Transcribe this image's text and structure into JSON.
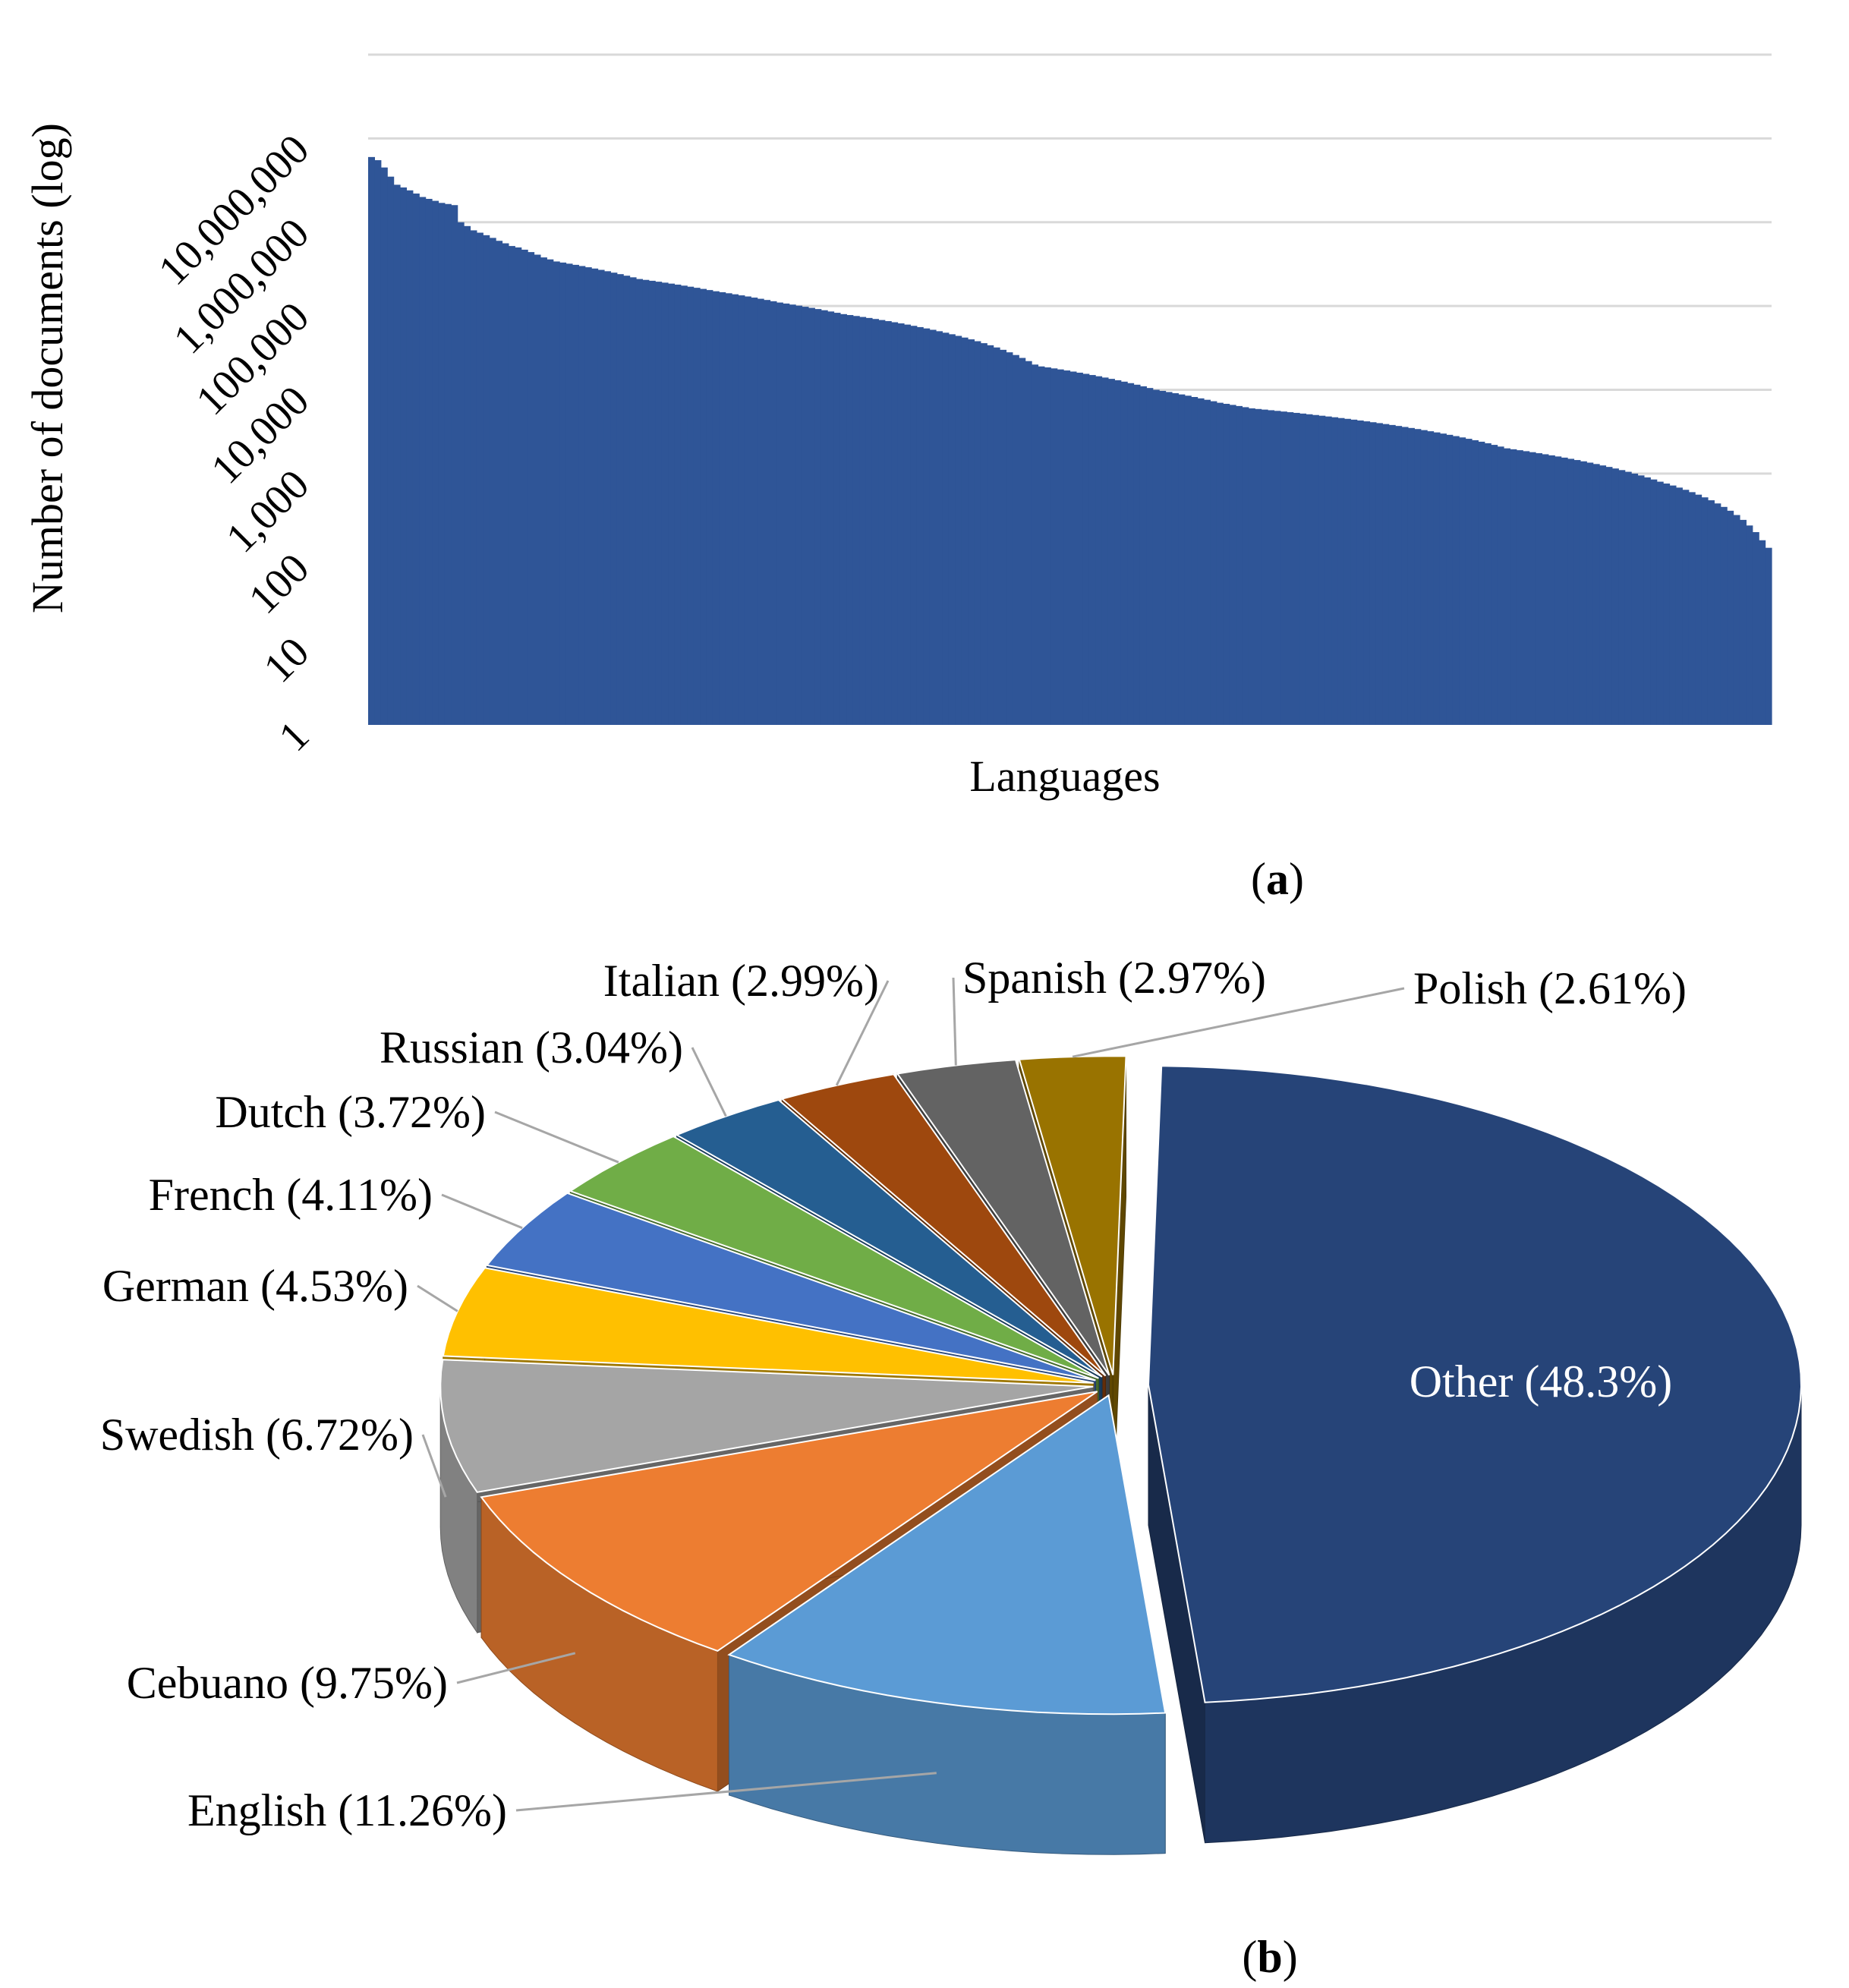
{
  "panel_a_label": "a",
  "panel_b_label": "b",
  "chart_data": [
    {
      "type": "bar",
      "panel": "a",
      "xlabel": "Languages",
      "ylabel": "Number of documents (log)",
      "yscale": "log",
      "ylim": [
        1,
        100000000
      ],
      "yticks": [
        "1",
        "10",
        "100",
        "1,000",
        "10,000",
        "100,000",
        "1,000,000",
        "10,000,000"
      ],
      "grid": true,
      "bar_color": "#2F5597",
      "values": [
        6000000,
        5500000,
        4500000,
        3500000,
        2800000,
        2600000,
        2400000,
        2200000,
        2000000,
        1900000,
        1800000,
        1700000,
        1650000,
        1600000,
        1000000,
        900000,
        800000,
        750000,
        700000,
        650000,
        600000,
        560000,
        520000,
        500000,
        470000,
        440000,
        410000,
        380000,
        360000,
        340000,
        330000,
        320000,
        310000,
        300000,
        290000,
        280000,
        270000,
        260000,
        250000,
        240000,
        230000,
        220000,
        210000,
        205000,
        200000,
        195000,
        190000,
        185000,
        180000,
        175000,
        170000,
        165000,
        160000,
        155000,
        150000,
        146000,
        142000,
        138000,
        134000,
        130000,
        126000,
        122000,
        118000,
        114000,
        110000,
        107000,
        104000,
        101000,
        98000,
        95000,
        92000,
        89000,
        86000,
        83000,
        80000,
        78000,
        76000,
        74000,
        72000,
        70000,
        68000,
        66000,
        64000,
        62000,
        60000,
        58000,
        56000,
        54000,
        52000,
        50000,
        48000,
        46000,
        44000,
        42000,
        40000,
        38000,
        36000,
        34000,
        32000,
        30000,
        28000,
        26000,
        24000,
        22000,
        20000,
        19000,
        18500,
        18000,
        17500,
        17000,
        16500,
        16000,
        15500,
        15000,
        14500,
        14000,
        13500,
        13000,
        12500,
        12000,
        11500,
        11000,
        10500,
        10000,
        9700,
        9400,
        9100,
        8800,
        8500,
        8200,
        7900,
        7600,
        7300,
        7000,
        6800,
        6600,
        6400,
        6200,
        6000,
        5900,
        5800,
        5700,
        5600,
        5500,
        5400,
        5300,
        5200,
        5100,
        5000,
        4900,
        4800,
        4700,
        4600,
        4500,
        4400,
        4300,
        4200,
        4100,
        4000,
        3900,
        3800,
        3700,
        3600,
        3500,
        3400,
        3300,
        3200,
        3100,
        3000,
        2900,
        2800,
        2700,
        2600,
        2500,
        2400,
        2300,
        2200,
        2100,
        2000,
        1950,
        1900,
        1850,
        1800,
        1750,
        1700,
        1650,
        1600,
        1550,
        1500,
        1450,
        1400,
        1350,
        1300,
        1250,
        1200,
        1150,
        1100,
        1050,
        1000,
        950,
        900,
        850,
        800,
        760,
        720,
        680,
        640,
        600,
        560,
        520,
        480,
        440,
        400,
        360,
        320,
        280,
        240,
        200,
        160,
        130
      ]
    },
    {
      "type": "pie",
      "panel": "b",
      "style": "3d exploded",
      "slices": [
        {
          "label": "Other (48.3%)",
          "name": "Other",
          "value": 48.3,
          "color": "#264478"
        },
        {
          "label": "English (11.26%)",
          "name": "English",
          "value": 11.26,
          "color": "#5B9BD5"
        },
        {
          "label": "Cebuano (9.75%)",
          "name": "Cebuano",
          "value": 9.75,
          "color": "#ED7D31"
        },
        {
          "label": "Swedish (6.72%)",
          "name": "Swedish",
          "value": 6.72,
          "color": "#A5A5A5"
        },
        {
          "label": "German (4.53%)",
          "name": "German",
          "value": 4.53,
          "color": "#FFC000"
        },
        {
          "label": "French (4.11%)",
          "name": "French",
          "value": 4.11,
          "color": "#4472C4"
        },
        {
          "label": "Dutch (3.72%)",
          "name": "Dutch",
          "value": 3.72,
          "color": "#70AD47"
        },
        {
          "label": "Russian (3.04%)",
          "name": "Russian",
          "value": 3.04,
          "color": "#255E91"
        },
        {
          "label": "Italian (2.99%)",
          "name": "Italian",
          "value": 2.99,
          "color": "#9E480E"
        },
        {
          "label": "Spanish (2.97%)",
          "name": "Spanish",
          "value": 2.97,
          "color": "#636363"
        },
        {
          "label": "Polish (2.61%)",
          "name": "Polish",
          "value": 2.61,
          "color": "#997300"
        }
      ]
    }
  ]
}
